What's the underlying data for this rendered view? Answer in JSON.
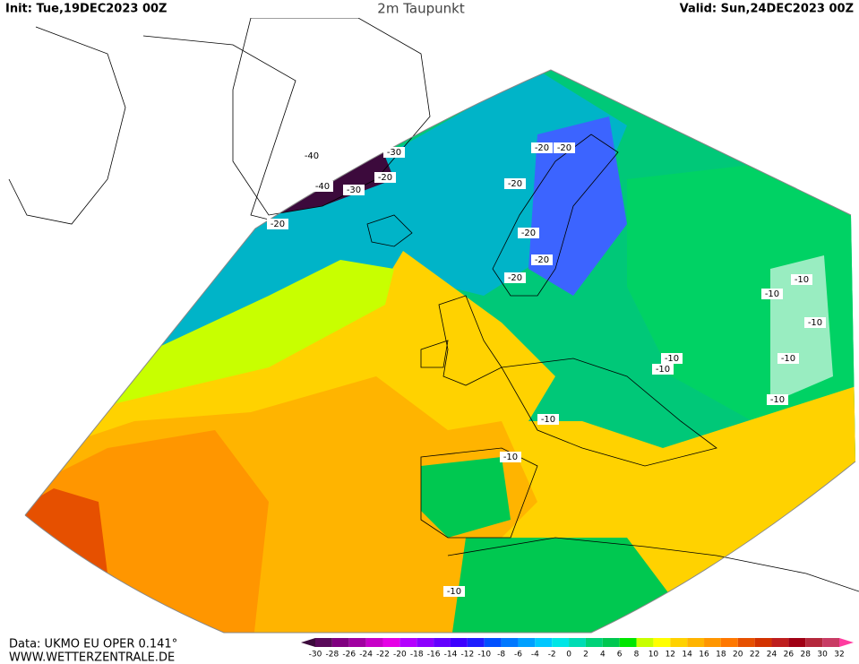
{
  "header": {
    "init": "Init: Tue,19DEC2023 00Z",
    "title": "2m Taupunkt",
    "valid": "Valid: Sun,24DEC2023 00Z"
  },
  "footer": {
    "source": "Data: UKMO EU OPER 0.141°",
    "site": "WWW.WETTERZENTRALE.DE"
  },
  "legend": {
    "labels": [
      -30,
      -28,
      -26,
      -24,
      -22,
      -20,
      -18,
      -16,
      -14,
      -12,
      -10,
      -8,
      -6,
      -4,
      -2,
      0,
      2,
      4,
      6,
      8,
      10,
      12,
      14,
      16,
      18,
      20,
      22,
      24,
      26,
      28,
      30,
      32
    ],
    "colors": [
      "#3c0a3c",
      "#5a0a5a",
      "#800080",
      "#a000a0",
      "#c800c8",
      "#e600e6",
      "#b400ff",
      "#8c00ff",
      "#6400ff",
      "#3c00ff",
      "#1e1eff",
      "#0050ff",
      "#0078ff",
      "#00a0ff",
      "#00c8ff",
      "#00e6e6",
      "#00dcb4",
      "#00d278",
      "#00c850",
      "#00e600",
      "#c8ff00",
      "#ffff00",
      "#ffd200",
      "#ffb400",
      "#ff9600",
      "#ff7800",
      "#e65000",
      "#d23200",
      "#be1e1e",
      "#a00014",
      "#b4283c",
      "#c83c64",
      "#ff3ca0"
    ]
  },
  "contour_labels": [
    "-40",
    "-30",
    "-40",
    "-30",
    "-20",
    "-20",
    "-20",
    "-20",
    "-20",
    "-20",
    "-20",
    "-20",
    "-10",
    "-10",
    "-10",
    "-10",
    "-10",
    "-10",
    "-10",
    "-10",
    "-10",
    "-10"
  ]
}
